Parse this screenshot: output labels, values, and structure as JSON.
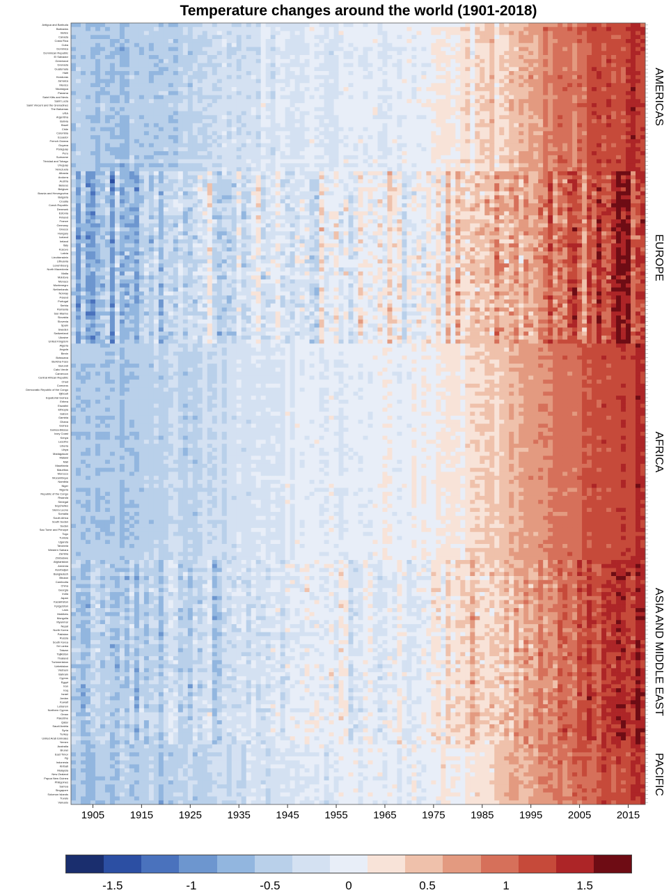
{
  "chart_data": {
    "type": "heatmap",
    "title": "Temperature changes around the world (1901-2018)",
    "x": {
      "start": 1901,
      "end": 2018,
      "ticks": [
        1905,
        1915,
        1925,
        1935,
        1945,
        1955,
        1965,
        1975,
        1985,
        1995,
        2005,
        2015
      ]
    },
    "regions": [
      {
        "name": "AMERICAS",
        "countries": [
          "Antigua and Barbuda",
          "Barbados",
          "Belize",
          "Canada",
          "Costa Rica",
          "Cuba",
          "Dominica",
          "Dominican Republic",
          "El Salvador",
          "Greenland",
          "Grenada",
          "Guatemala",
          "Haiti",
          "Honduras",
          "Jamaica",
          "Mexico",
          "Nicaragua",
          "Panama",
          "Saint Kitts and Nevis",
          "Saint Lucia",
          "Saint Vincent and the Grenadines",
          "The Bahamas",
          "USA",
          "Argentina",
          "Bolivia",
          "Brazil",
          "Chile",
          "Colombia",
          "Ecuador",
          "French Guiana",
          "Guyana",
          "Paraguay",
          "Peru",
          "Suriname",
          "Trinidad and Tobago",
          "Uruguay",
          "Venezuela"
        ]
      },
      {
        "name": "EUROPE",
        "countries": [
          "Albania",
          "Andorra",
          "Austria",
          "Belarus",
          "Belgium",
          "Bosnia and Herzegovina",
          "Bulgaria",
          "Croatia",
          "Czech Republic",
          "Denmark",
          "Estonia",
          "Finland",
          "France",
          "Germany",
          "Greece",
          "Hungary",
          "Iceland",
          "Ireland",
          "Italy",
          "Kosovo",
          "Latvia",
          "Liechtenstein",
          "Lithuania",
          "Luxembourg",
          "North Macedonia",
          "Malta",
          "Moldova",
          "Monaco",
          "Montenegro",
          "Netherlands",
          "Norway",
          "Poland",
          "Portugal",
          "Serbia",
          "Romania",
          "San Marino",
          "Slovakia",
          "Slovenia",
          "Spain",
          "Sweden",
          "Switzerland",
          "Ukraine",
          "United Kingdom"
        ]
      },
      {
        "name": "AFRICA",
        "countries": [
          "Algeria",
          "Angola",
          "Benin",
          "Botswana",
          "Burkina Faso",
          "Burundi",
          "Cabo Verde",
          "Cameroon",
          "Central African Republic",
          "Chad",
          "Comoros",
          "Democratic Republic of the Congo",
          "Djibouti",
          "Equatorial Guinea",
          "Eritrea",
          "Eswatini",
          "Ethiopia",
          "Gabon",
          "Gambia",
          "Ghana",
          "Guinea",
          "Guinea-Bissau",
          "Ivory Coast",
          "Kenya",
          "Lesotho",
          "Liberia",
          "Libya",
          "Madagascar",
          "Malawi",
          "Mali",
          "Mauritania",
          "Mauritius",
          "Morocco",
          "Mozambique",
          "Namibia",
          "Niger",
          "Nigeria",
          "Republic of the Congo",
          "Rwanda",
          "Senegal",
          "Seychelles",
          "Sierra Leone",
          "Somalia",
          "South Africa",
          "South Sudan",
          "Sudan",
          "Sao Tome and Principe",
          "Togo",
          "Tunisia",
          "Uganda",
          "Tanzania",
          "Western Sahara",
          "Zambia",
          "Zimbabwe"
        ]
      },
      {
        "name": "ASIA AND MIDDLE EAST",
        "countries": [
          "Afghanistan",
          "Armenia",
          "Azerbaijan",
          "Bangladesh",
          "Bhutan",
          "Cambodia",
          "China",
          "Georgia",
          "India",
          "Japan",
          "Kazakhstan",
          "Kyrgyzstan",
          "Laos",
          "Maldives",
          "Mongolia",
          "Myanmar",
          "Nepal",
          "North Korea",
          "Pakistan",
          "Russia",
          "South Korea",
          "Sri Lanka",
          "Taiwan",
          "Tajikistan",
          "Thailand",
          "Turkmenistan",
          "Uzbekistan",
          "Vietnam",
          "Bahrain",
          "Cyprus",
          "Egypt",
          "Iran",
          "Iraq",
          "Israel",
          "Jordan",
          "Kuwait",
          "Lebanon",
          "Northern Cyprus",
          "Oman",
          "Palestine",
          "Qatar",
          "Saudi Arabia",
          "Syria",
          "Turkey",
          "United Arab Emirates",
          "Yemen"
        ]
      },
      {
        "name": "PACIFIC",
        "countries": [
          "Australia",
          "Brunei",
          "East Timor",
          "Fiji",
          "Indonesia",
          "Kiribati",
          "Malaysia",
          "New Zealand",
          "Papua New Guinea",
          "Philippines",
          "Samoa",
          "Singapore",
          "Solomon Islands",
          "Tuvalu",
          "Vanuatu"
        ]
      }
    ],
    "color_scale": {
      "colors": [
        "#1a2e6e",
        "#2c4fa3",
        "#4a72bd",
        "#6d96cf",
        "#92b6df",
        "#b9d0ea",
        "#d4e1f2",
        "#e8eef8",
        "#f8e3d8",
        "#efc1ab",
        "#e39a80",
        "#d6705a",
        "#c64a3a",
        "#ad2527",
        "#6e0c14"
      ],
      "ticks": [
        -1.5,
        -1,
        -0.5,
        0,
        0.5,
        1,
        1.5
      ],
      "range": [
        -1.8,
        1.8
      ]
    },
    "trend": {
      "note_values_by_year": [
        [
          1901,
          -0.55
        ],
        [
          1910,
          -0.6
        ],
        [
          1920,
          -0.45
        ],
        [
          1930,
          -0.35
        ],
        [
          1940,
          -0.2
        ],
        [
          1950,
          -0.1
        ],
        [
          1960,
          -0.05
        ],
        [
          1970,
          -0.05
        ],
        [
          1980,
          0.15
        ],
        [
          1990,
          0.45
        ],
        [
          2000,
          0.85
        ],
        [
          2010,
          1.15
        ],
        [
          2018,
          1.35
        ]
      ]
    }
  }
}
